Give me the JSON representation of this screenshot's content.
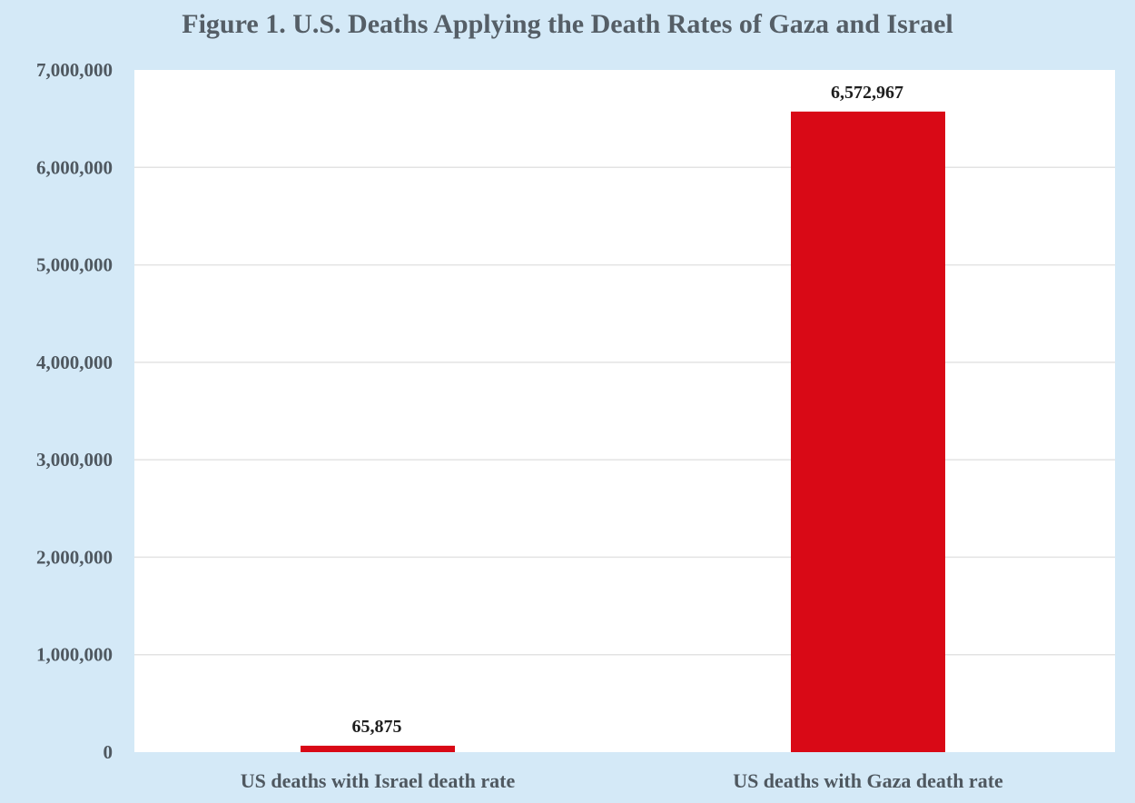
{
  "chart_data": {
    "type": "bar",
    "title": "Figure 1. U.S. Deaths Applying the Death Rates of Gaza and Israel",
    "categories": [
      "US deaths with Israel death rate",
      "US deaths with Gaza death rate"
    ],
    "values": [
      65875,
      6572967
    ],
    "data_labels": [
      "65,875",
      "6,572,967"
    ],
    "yticks": [
      0,
      1000000,
      2000000,
      3000000,
      4000000,
      5000000,
      6000000,
      7000000
    ],
    "ytick_labels": [
      "0",
      "1,000,000",
      "2,000,000",
      "3,000,000",
      "4,000,000",
      "5,000,000",
      "6,000,000",
      "7,000,000"
    ],
    "ylim": [
      0,
      7000000
    ],
    "grid": true,
    "legend": "none",
    "colors": {
      "bar": "#d90916",
      "plot_background": "#ffffff",
      "figure_background": "#d4e9f7",
      "gridline": "#e3e3e3"
    }
  }
}
